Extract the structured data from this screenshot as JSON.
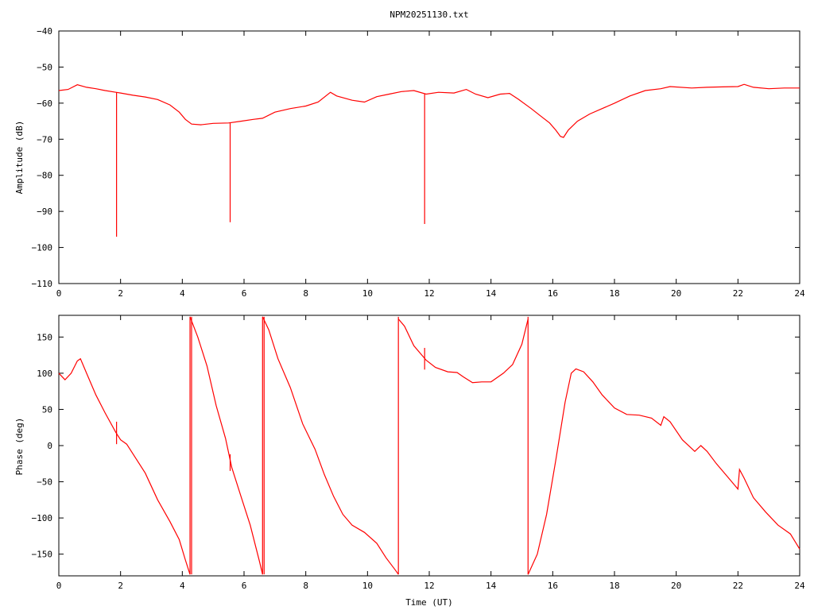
{
  "chart_data": [
    {
      "type": "line",
      "title": "NPM20251130.txt",
      "xlabel": "",
      "ylabel": "Amplitude (dB)",
      "xlim": [
        0,
        24
      ],
      "ylim": [
        -110,
        -40
      ],
      "xticks": [
        0,
        2,
        4,
        6,
        8,
        10,
        12,
        14,
        16,
        18,
        20,
        22,
        24
      ],
      "yticks": [
        -110,
        -100,
        -90,
        -80,
        -70,
        -60,
        -50,
        -40
      ],
      "xtick_labels": [
        "0",
        "2",
        "4",
        "6",
        "8",
        "10",
        "12",
        "14",
        "16",
        "18",
        "20",
        "22",
        "24"
      ],
      "ytick_labels": [
        "−110",
        "−100",
        "−90",
        "−80",
        "−70",
        "−60",
        "−50",
        "−40"
      ],
      "color": "#ff0000",
      "series": [
        {
          "x": [
            0,
            0.3,
            0.6,
            0.9,
            1.2,
            1.5,
            1.85,
            2.0,
            2.4,
            2.8,
            3.2,
            3.6,
            3.9,
            4.1,
            4.3,
            4.6,
            5.0,
            5.5,
            5.9,
            6.3,
            6.6,
            7.0,
            7.5,
            8.0,
            8.4,
            8.8,
            9.0,
            9.5,
            9.9,
            10.3,
            10.7,
            11.1,
            11.5,
            11.9,
            12.3,
            12.8,
            13.2,
            13.5,
            13.9,
            14.3,
            14.6,
            14.9,
            15.3,
            15.6,
            15.9,
            16.1,
            16.25,
            16.35,
            16.5,
            16.8,
            17.2,
            17.6,
            18.0,
            18.5,
            19.0,
            19.5,
            19.8,
            20.5,
            21.0,
            21.5,
            22.0,
            22.2,
            22.5,
            23.0,
            23.5,
            24.0
          ],
          "y": [
            -56.5,
            -56.2,
            -54.9,
            -55.6,
            -56.0,
            -56.5,
            -57.0,
            -57.2,
            -57.8,
            -58.3,
            -59.0,
            -60.5,
            -62.5,
            -64.5,
            -65.8,
            -66.0,
            -65.6,
            -65.5,
            -65.0,
            -64.5,
            -64.2,
            -62.5,
            -61.5,
            -60.8,
            -59.7,
            -57.0,
            -58.0,
            -59.2,
            -59.7,
            -58.2,
            -57.5,
            -56.8,
            -56.5,
            -57.5,
            -57.0,
            -57.2,
            -56.2,
            -57.5,
            -58.5,
            -57.5,
            -57.3,
            -59.0,
            -61.5,
            -63.5,
            -65.5,
            -67.5,
            -69.2,
            -69.5,
            -67.5,
            -65.0,
            -63.0,
            -61.5,
            -60.0,
            -58.0,
            -56.5,
            -56.0,
            -55.4,
            -55.8,
            -55.6,
            -55.5,
            -55.4,
            -54.8,
            -55.6,
            -56.0,
            -55.8,
            -55.8
          ]
        }
      ],
      "spikes": [
        {
          "x": 1.87,
          "y_from": -57.0,
          "y_to": -97.0
        },
        {
          "x": 5.55,
          "y_from": -65.5,
          "y_to": -93.0
        },
        {
          "x": 11.85,
          "y_from": -57.5,
          "y_to": -93.5
        }
      ]
    },
    {
      "type": "line",
      "title": "",
      "xlabel": "Time (UT)",
      "ylabel": "Phase (deg)",
      "xlim": [
        0,
        24
      ],
      "ylim": [
        -180,
        180
      ],
      "xticks": [
        0,
        2,
        4,
        6,
        8,
        10,
        12,
        14,
        16,
        18,
        20,
        22,
        24
      ],
      "yticks": [
        -150,
        -100,
        -50,
        0,
        50,
        100,
        150
      ],
      "xtick_labels": [
        "0",
        "2",
        "4",
        "6",
        "8",
        "10",
        "12",
        "14",
        "16",
        "18",
        "20",
        "22",
        "24"
      ],
      "ytick_labels": [
        "−150",
        "−100",
        "−50",
        "0",
        "50",
        "100",
        "150"
      ],
      "color": "#ff0000",
      "series": [
        {
          "x": [
            0,
            0.2,
            0.4,
            0.6,
            0.7,
            0.9,
            1.2,
            1.5,
            1.85,
            2.0,
            2.2,
            2.5,
            2.8,
            3.2,
            3.6,
            3.9,
            4.1,
            4.25
          ],
          "y": [
            100,
            91,
            100,
            117,
            120,
            100,
            70,
            45,
            18,
            8,
            2,
            -18,
            -38,
            -75,
            -105,
            -130,
            -158,
            -178
          ]
        },
        {
          "x": [
            4.25,
            4.5,
            4.8,
            5.1,
            5.4,
            5.6,
            5.9,
            6.2,
            6.5,
            6.6
          ],
          "y": [
            178,
            150,
            110,
            55,
            10,
            -30,
            -70,
            -110,
            -160,
            -178
          ]
        },
        {
          "x": [
            6.6,
            6.8,
            7.1,
            7.5,
            7.9,
            8.3,
            8.6,
            8.9,
            9.2,
            9.5,
            9.9,
            10.3,
            10.6,
            10.9,
            11.0
          ],
          "y": [
            178,
            160,
            120,
            80,
            30,
            -5,
            -40,
            -70,
            -95,
            -110,
            -120,
            -135,
            -155,
            -172,
            -178
          ]
        },
        {
          "x": [
            11.0,
            11.2,
            11.5,
            11.9,
            12.2,
            12.6,
            12.9,
            13.1,
            13.4,
            13.7,
            14.0,
            14.4,
            14.7,
            15.0,
            15.2
          ],
          "y": [
            175,
            165,
            138,
            118,
            108,
            102,
            101,
            95,
            87,
            88,
            88,
            100,
            112,
            140,
            175
          ]
        },
        {
          "x": [
            15.2,
            15.5,
            15.8,
            16.1,
            16.4,
            16.6,
            16.75,
            17.0,
            17.3,
            17.6,
            18.0,
            18.4,
            18.8,
            19.2,
            19.5,
            19.6,
            19.8,
            20.2,
            20.6,
            20.8,
            21.0,
            21.3,
            21.6,
            21.9,
            22.0,
            22.05,
            22.2,
            22.5,
            22.9,
            23.3,
            23.7,
            24.0
          ],
          "y": [
            -178,
            -150,
            -95,
            -20,
            60,
            100,
            106,
            102,
            88,
            70,
            52,
            43,
            42,
            38,
            28,
            40,
            33,
            8,
            -8,
            0,
            -8,
            -25,
            -40,
            -55,
            -60,
            -33,
            -45,
            -72,
            -92,
            -110,
            -122,
            -143
          ]
        }
      ],
      "spikes": [
        {
          "x": 1.87,
          "y_from": 33,
          "y_to": 2
        },
        {
          "x": 5.55,
          "y_from": -12,
          "y_to": -35
        },
        {
          "x": 11.85,
          "y_from": 135,
          "y_to": 105
        },
        {
          "x": 4.25,
          "y_from": -178,
          "y_to": 178
        },
        {
          "x": 4.3,
          "y_from": -178,
          "y_to": 178
        },
        {
          "x": 6.6,
          "y_from": -178,
          "y_to": 178
        },
        {
          "x": 6.65,
          "y_from": -178,
          "y_to": 178
        },
        {
          "x": 11.0,
          "y_from": -178,
          "y_to": 178
        },
        {
          "x": 15.2,
          "y_from": -178,
          "y_to": 178
        }
      ]
    }
  ]
}
